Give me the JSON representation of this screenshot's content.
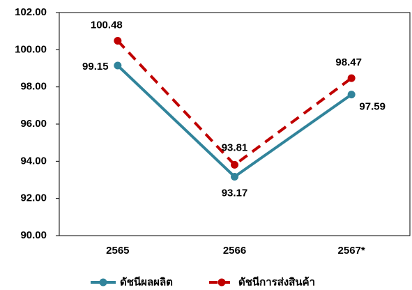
{
  "chart_data": {
    "type": "line",
    "categories": [
      "2565",
      "2566",
      "2567*"
    ],
    "series": [
      {
        "name": "ดัชนีผลผลิต",
        "color": "#31849b",
        "line_style": "solid",
        "values": [
          99.15,
          93.17,
          97.59
        ]
      },
      {
        "name": "ดัชนีการส่งสินค้า",
        "color": "#c00000",
        "line_style": "dashed",
        "values": [
          100.48,
          93.81,
          98.47
        ]
      }
    ],
    "ylim": [
      90,
      102
    ],
    "yticks": [
      {
        "value": 90,
        "label": "90.00"
      },
      {
        "value": 92,
        "label": "92.00"
      },
      {
        "value": 94,
        "label": "94.00"
      },
      {
        "value": 96,
        "label": "96.00"
      },
      {
        "value": 98,
        "label": "98.00"
      },
      {
        "value": 100,
        "label": "100.00"
      },
      {
        "value": 102,
        "label": "102.00"
      }
    ],
    "grid": false,
    "legend": "bottom"
  }
}
